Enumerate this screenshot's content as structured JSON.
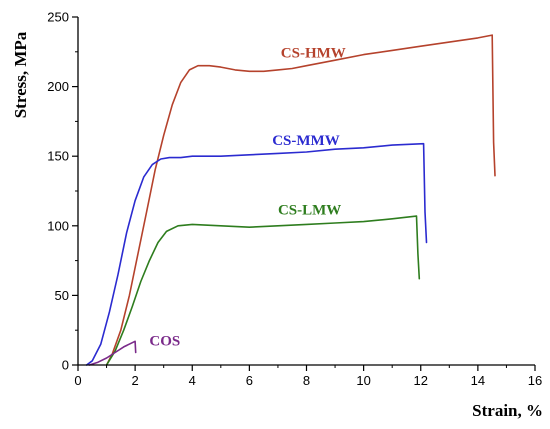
{
  "chart_data": {
    "type": "line",
    "xlabel": "Strain, %",
    "ylabel": "Stress, MPa",
    "xlim": [
      0,
      16
    ],
    "ylim": [
      0,
      250
    ],
    "xticks": [
      0,
      2,
      4,
      6,
      8,
      10,
      12,
      14,
      16
    ],
    "yticks": [
      0,
      50,
      100,
      150,
      200,
      250
    ],
    "grid": false,
    "series": [
      {
        "name": "CS-HMW",
        "color": "#b5422c",
        "label_at": [
          7.1,
          221
        ],
        "x": [
          1.0,
          1.2,
          1.5,
          1.8,
          2.1,
          2.4,
          2.7,
          3.0,
          3.3,
          3.6,
          3.9,
          4.2,
          4.6,
          5.0,
          5.5,
          6.0,
          6.5,
          7.0,
          7.5,
          8.0,
          9.0,
          10.0,
          11.0,
          12.0,
          13.0,
          14.0,
          14.5,
          14.55,
          14.6
        ],
        "y": [
          0,
          8,
          25,
          50,
          80,
          110,
          140,
          165,
          187,
          203,
          212,
          215,
          215,
          214,
          212,
          211,
          211,
          212,
          213,
          215,
          219,
          223,
          226,
          229,
          232,
          235,
          237,
          160,
          136
        ]
      },
      {
        "name": "CS-MMW",
        "color": "#2b2bd0",
        "label_at": [
          6.8,
          158
        ],
        "x": [
          0.3,
          0.5,
          0.8,
          1.1,
          1.4,
          1.7,
          2.0,
          2.3,
          2.6,
          2.9,
          3.2,
          3.6,
          4.0,
          5.0,
          6.0,
          7.0,
          8.0,
          9.0,
          10.0,
          11.0,
          12.1,
          12.15,
          12.2
        ],
        "y": [
          0,
          3,
          15,
          38,
          65,
          95,
          118,
          135,
          144,
          148,
          149,
          149,
          150,
          150,
          151,
          152,
          153,
          155,
          156,
          158,
          159,
          110,
          88
        ]
      },
      {
        "name": "CS-LMW",
        "color": "#2e7d1e",
        "label_at": [
          7.0,
          108
        ],
        "x": [
          1.0,
          1.3,
          1.6,
          1.9,
          2.2,
          2.5,
          2.8,
          3.1,
          3.5,
          4.0,
          5.0,
          6.0,
          7.0,
          8.0,
          9.0,
          10.0,
          11.0,
          11.85,
          11.9,
          11.95
        ],
        "y": [
          0,
          10,
          25,
          42,
          60,
          75,
          88,
          96,
          100,
          101,
          100,
          99,
          100,
          101,
          102,
          103,
          105,
          107,
          80,
          62
        ]
      },
      {
        "name": "COS",
        "color": "#7a2a8a",
        "label_at": [
          2.5,
          14
        ],
        "x": [
          0.4,
          0.7,
          1.0,
          1.3,
          1.6,
          1.9,
          2.0,
          2.02
        ],
        "y": [
          0,
          2,
          5,
          9,
          13,
          16,
          17,
          9
        ]
      }
    ]
  }
}
